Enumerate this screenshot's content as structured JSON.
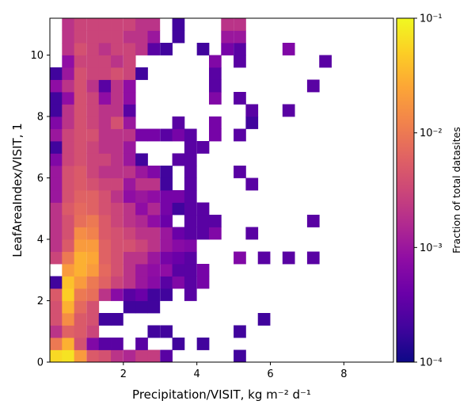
{
  "chart_data": {
    "type": "heatmap",
    "title": "",
    "xlabel": "Precipitation/VISIT,  kg m⁻² d⁻¹",
    "ylabel": "LeafAreaIndex/VISIT,  1",
    "xlim": [
      0.0,
      9.35
    ],
    "ylim": [
      0.0,
      11.2
    ],
    "x_ticks": [
      2,
      4,
      6,
      8
    ],
    "x_tick_labels": [
      "2",
      "4",
      "6",
      "8"
    ],
    "y_ticks": [
      0,
      2,
      4,
      6,
      8,
      10
    ],
    "y_tick_labels": [
      "0",
      "2",
      "4",
      "6",
      "8",
      "10"
    ],
    "bin_width_x": 0.33,
    "bin_height_y": 0.4,
    "colormap": "plasma",
    "color_scale": "log",
    "colorbar": {
      "label": "Fraction of total datasites",
      "range": [
        0.0001,
        0.1
      ],
      "ticks": [
        0.0001,
        0.001,
        0.01,
        0.1
      ],
      "tick_labels": [
        "10⁻⁴",
        "10⁻³",
        "10⁻²",
        "10⁻¹"
      ]
    },
    "cells": [
      [
        0.0,
        0.0,
        0.06
      ],
      [
        0.33,
        0.0,
        0.07
      ],
      [
        0.66,
        0.0,
        0.02
      ],
      [
        1.0,
        0.0,
        0.005
      ],
      [
        1.33,
        0.0,
        0.004
      ],
      [
        1.66,
        0.0,
        0.002
      ],
      [
        2.0,
        0.0,
        0.0015
      ],
      [
        2.33,
        0.0,
        0.0025
      ],
      [
        2.66,
        0.0,
        0.0025
      ],
      [
        3.0,
        0.0,
        0.0003
      ],
      [
        5.0,
        0.0,
        0.0002
      ],
      [
        0.0,
        0.4,
        0.01
      ],
      [
        0.33,
        0.4,
        0.03
      ],
      [
        0.66,
        0.4,
        0.004
      ],
      [
        1.0,
        0.4,
        0.0006
      ],
      [
        1.33,
        0.4,
        0.0003
      ],
      [
        1.66,
        0.4,
        0.0003
      ],
      [
        2.33,
        0.4,
        0.0003
      ],
      [
        3.33,
        0.4,
        0.0002
      ],
      [
        4.0,
        0.4,
        0.0002
      ],
      [
        0.0,
        0.8,
        0.002
      ],
      [
        0.33,
        0.8,
        0.006
      ],
      [
        0.66,
        0.8,
        0.005
      ],
      [
        1.0,
        0.8,
        0.003
      ],
      [
        2.66,
        0.8,
        0.0002
      ],
      [
        3.0,
        0.8,
        0.0002
      ],
      [
        5.0,
        0.8,
        0.0002
      ],
      [
        0.0,
        1.2,
        0.004
      ],
      [
        0.33,
        1.2,
        0.015
      ],
      [
        0.66,
        1.2,
        0.005
      ],
      [
        1.0,
        1.2,
        0.004
      ],
      [
        1.33,
        1.2,
        0.0002
      ],
      [
        1.66,
        1.2,
        0.0002
      ],
      [
        5.66,
        1.2,
        0.0002
      ],
      [
        0.0,
        1.6,
        0.004
      ],
      [
        0.33,
        1.6,
        0.03
      ],
      [
        0.66,
        1.6,
        0.007
      ],
      [
        1.0,
        1.6,
        0.004
      ],
      [
        2.0,
        1.6,
        0.0002
      ],
      [
        2.33,
        1.6,
        0.0002
      ],
      [
        2.66,
        1.6,
        0.0002
      ],
      [
        0.0,
        2.0,
        0.005
      ],
      [
        0.33,
        2.0,
        0.05
      ],
      [
        0.66,
        2.0,
        0.01
      ],
      [
        1.0,
        2.0,
        0.008
      ],
      [
        1.33,
        2.0,
        0.002
      ],
      [
        1.66,
        2.0,
        0.0007
      ],
      [
        2.0,
        2.0,
        0.0003
      ],
      [
        2.33,
        2.0,
        0.0004
      ],
      [
        2.66,
        2.0,
        0.0002
      ],
      [
        3.0,
        2.0,
        0.0002
      ],
      [
        3.66,
        2.0,
        0.0003
      ],
      [
        0.0,
        2.4,
        0.0002
      ],
      [
        0.33,
        2.4,
        0.04
      ],
      [
        0.66,
        2.4,
        0.02
      ],
      [
        1.0,
        2.4,
        0.01
      ],
      [
        1.33,
        2.4,
        0.006
      ],
      [
        1.66,
        2.4,
        0.003
      ],
      [
        2.0,
        2.4,
        0.002
      ],
      [
        2.33,
        2.4,
        0.001
      ],
      [
        2.66,
        2.4,
        0.0007
      ],
      [
        3.0,
        2.4,
        0.0003
      ],
      [
        3.33,
        2.4,
        0.0006
      ],
      [
        3.66,
        2.4,
        0.0003
      ],
      [
        4.0,
        2.4,
        0.0005
      ],
      [
        0.33,
        2.8,
        0.02
      ],
      [
        0.66,
        2.8,
        0.03
      ],
      [
        1.0,
        2.8,
        0.02
      ],
      [
        1.33,
        2.8,
        0.007
      ],
      [
        1.66,
        2.8,
        0.004
      ],
      [
        2.0,
        2.8,
        0.002
      ],
      [
        2.33,
        2.8,
        0.001
      ],
      [
        2.66,
        2.8,
        0.0008
      ],
      [
        3.0,
        2.8,
        0.0008
      ],
      [
        3.33,
        2.8,
        0.0003
      ],
      [
        3.66,
        2.8,
        0.0003
      ],
      [
        4.0,
        2.8,
        0.0005
      ],
      [
        0.0,
        3.2,
        0.003
      ],
      [
        0.33,
        3.2,
        0.01
      ],
      [
        0.66,
        3.2,
        0.03
      ],
      [
        1.0,
        3.2,
        0.025
      ],
      [
        1.33,
        3.2,
        0.006
      ],
      [
        1.66,
        3.2,
        0.004
      ],
      [
        2.0,
        3.2,
        0.002
      ],
      [
        2.33,
        3.2,
        0.002
      ],
      [
        2.66,
        3.2,
        0.001
      ],
      [
        3.0,
        3.2,
        0.0005
      ],
      [
        3.33,
        3.2,
        0.0004
      ],
      [
        3.66,
        3.2,
        0.0003
      ],
      [
        5.0,
        3.2,
        0.0006
      ],
      [
        5.66,
        3.2,
        0.0003
      ],
      [
        6.33,
        3.2,
        0.0003
      ],
      [
        7.0,
        3.2,
        0.0003
      ],
      [
        0.0,
        3.6,
        0.002
      ],
      [
        0.33,
        3.6,
        0.005
      ],
      [
        0.66,
        3.6,
        0.02
      ],
      [
        1.0,
        3.6,
        0.02
      ],
      [
        1.33,
        3.6,
        0.006
      ],
      [
        1.66,
        3.6,
        0.004
      ],
      [
        2.0,
        3.6,
        0.004
      ],
      [
        2.33,
        3.6,
        0.003
      ],
      [
        2.66,
        3.6,
        0.002
      ],
      [
        3.0,
        3.6,
        0.001
      ],
      [
        3.33,
        3.6,
        0.0007
      ],
      [
        3.66,
        3.6,
        0.0006
      ],
      [
        0.0,
        4.0,
        0.002
      ],
      [
        0.33,
        4.0,
        0.004
      ],
      [
        0.66,
        4.0,
        0.015
      ],
      [
        1.0,
        4.0,
        0.012
      ],
      [
        1.33,
        4.0,
        0.005
      ],
      [
        1.66,
        4.0,
        0.004
      ],
      [
        2.0,
        4.0,
        0.003
      ],
      [
        2.33,
        4.0,
        0.002
      ],
      [
        2.66,
        4.0,
        0.002
      ],
      [
        3.0,
        4.0,
        0.001
      ],
      [
        3.33,
        4.0,
        0.0004
      ],
      [
        3.66,
        4.0,
        0.0003
      ],
      [
        4.0,
        4.0,
        0.0003
      ],
      [
        4.33,
        4.0,
        0.0006
      ],
      [
        5.33,
        4.0,
        0.0003
      ],
      [
        0.0,
        4.4,
        0.002
      ],
      [
        0.33,
        4.4,
        0.004
      ],
      [
        0.66,
        4.4,
        0.008
      ],
      [
        1.0,
        4.4,
        0.01
      ],
      [
        1.33,
        4.4,
        0.005
      ],
      [
        1.66,
        4.4,
        0.003
      ],
      [
        2.0,
        4.4,
        0.002
      ],
      [
        2.33,
        4.4,
        0.0015
      ],
      [
        2.66,
        4.4,
        0.0008
      ],
      [
        3.0,
        4.4,
        0.0004
      ],
      [
        3.66,
        4.4,
        0.0003
      ],
      [
        4.0,
        4.4,
        0.0003
      ],
      [
        4.33,
        4.4,
        0.0003
      ],
      [
        7.0,
        4.4,
        0.0003
      ],
      [
        0.0,
        4.8,
        0.002
      ],
      [
        0.33,
        4.8,
        0.005
      ],
      [
        0.66,
        4.8,
        0.007
      ],
      [
        1.0,
        4.8,
        0.006
      ],
      [
        1.33,
        4.8,
        0.004
      ],
      [
        1.66,
        4.8,
        0.003
      ],
      [
        2.0,
        4.8,
        0.002
      ],
      [
        2.33,
        4.8,
        0.0008
      ],
      [
        2.66,
        4.8,
        0.0015
      ],
      [
        3.0,
        4.8,
        0.0005
      ],
      [
        3.33,
        4.8,
        0.0002
      ],
      [
        3.66,
        4.8,
        0.0003
      ],
      [
        4.0,
        4.8,
        0.0003
      ],
      [
        0.0,
        5.2,
        0.001
      ],
      [
        0.33,
        5.2,
        0.004
      ],
      [
        0.66,
        5.2,
        0.006
      ],
      [
        1.0,
        5.2,
        0.006
      ],
      [
        1.33,
        5.2,
        0.004
      ],
      [
        1.66,
        5.2,
        0.002
      ],
      [
        2.0,
        5.2,
        0.0008
      ],
      [
        2.33,
        5.2,
        0.001
      ],
      [
        2.66,
        5.2,
        0.0008
      ],
      [
        3.0,
        5.2,
        0.0005
      ],
      [
        3.33,
        5.2,
        0.0005
      ],
      [
        3.66,
        5.2,
        0.0003
      ],
      [
        0.0,
        5.6,
        0.001
      ],
      [
        0.33,
        5.6,
        0.004
      ],
      [
        0.66,
        5.6,
        0.005
      ],
      [
        1.0,
        5.6,
        0.004
      ],
      [
        1.33,
        5.6,
        0.003
      ],
      [
        1.66,
        5.6,
        0.003
      ],
      [
        2.0,
        5.6,
        0.001
      ],
      [
        2.33,
        5.6,
        0.002
      ],
      [
        2.66,
        5.6,
        0.002
      ],
      [
        3.0,
        5.6,
        0.0002
      ],
      [
        3.66,
        5.6,
        0.0003
      ],
      [
        5.33,
        5.6,
        0.0003
      ],
      [
        0.0,
        6.0,
        0.001
      ],
      [
        0.33,
        6.0,
        0.004
      ],
      [
        0.66,
        6.0,
        0.005
      ],
      [
        1.0,
        6.0,
        0.003
      ],
      [
        1.33,
        6.0,
        0.002
      ],
      [
        1.66,
        6.0,
        0.002
      ],
      [
        2.0,
        6.0,
        0.002
      ],
      [
        2.33,
        6.0,
        0.001
      ],
      [
        2.66,
        6.0,
        0.0006
      ],
      [
        3.0,
        6.0,
        0.0002
      ],
      [
        3.66,
        6.0,
        0.0003
      ],
      [
        5.0,
        6.0,
        0.0003
      ],
      [
        0.0,
        6.4,
        0.0006
      ],
      [
        0.33,
        6.4,
        0.003
      ],
      [
        0.66,
        6.4,
        0.004
      ],
      [
        1.0,
        6.4,
        0.003
      ],
      [
        1.33,
        6.4,
        0.003
      ],
      [
        1.66,
        6.4,
        0.002
      ],
      [
        2.0,
        6.4,
        0.001
      ],
      [
        2.33,
        6.4,
        0.0002
      ],
      [
        3.33,
        6.4,
        0.0003
      ],
      [
        3.66,
        6.4,
        0.0003
      ],
      [
        0.0,
        6.8,
        0.0002
      ],
      [
        0.33,
        6.8,
        0.003
      ],
      [
        0.66,
        6.8,
        0.004
      ],
      [
        1.0,
        6.8,
        0.003
      ],
      [
        1.33,
        6.8,
        0.002
      ],
      [
        1.66,
        6.8,
        0.002
      ],
      [
        2.0,
        6.8,
        0.001
      ],
      [
        3.66,
        6.8,
        0.0003
      ],
      [
        4.0,
        6.8,
        0.0003
      ],
      [
        0.0,
        7.2,
        0.001
      ],
      [
        0.33,
        7.2,
        0.003
      ],
      [
        0.66,
        7.2,
        0.004
      ],
      [
        1.0,
        7.2,
        0.004
      ],
      [
        1.33,
        7.2,
        0.002
      ],
      [
        1.66,
        7.2,
        0.002
      ],
      [
        2.0,
        7.2,
        0.002
      ],
      [
        2.33,
        7.2,
        0.0005
      ],
      [
        2.66,
        7.2,
        0.0005
      ],
      [
        3.0,
        7.2,
        0.0003
      ],
      [
        3.33,
        7.2,
        0.0005
      ],
      [
        3.66,
        7.2,
        0.0003
      ],
      [
        4.33,
        7.2,
        0.0005
      ],
      [
        5.0,
        7.2,
        0.0003
      ],
      [
        0.0,
        7.6,
        0.0006
      ],
      [
        0.33,
        7.6,
        0.002
      ],
      [
        0.66,
        7.6,
        0.004
      ],
      [
        1.0,
        7.6,
        0.003
      ],
      [
        1.33,
        7.6,
        0.002
      ],
      [
        1.66,
        7.6,
        0.004
      ],
      [
        2.0,
        7.6,
        0.001
      ],
      [
        3.33,
        7.6,
        0.0003
      ],
      [
        4.33,
        7.6,
        0.0005
      ],
      [
        5.33,
        7.6,
        0.0002
      ],
      [
        0.0,
        8.0,
        0.0002
      ],
      [
        0.33,
        8.0,
        0.002
      ],
      [
        0.66,
        8.0,
        0.004
      ],
      [
        1.0,
        8.0,
        0.003
      ],
      [
        1.33,
        8.0,
        0.002
      ],
      [
        1.66,
        8.0,
        0.002
      ],
      [
        2.0,
        8.0,
        0.0003
      ],
      [
        5.33,
        8.0,
        0.0003
      ],
      [
        6.33,
        8.0,
        0.0003
      ],
      [
        0.0,
        8.4,
        0.0002
      ],
      [
        0.33,
        8.4,
        0.0008
      ],
      [
        0.66,
        8.4,
        0.004
      ],
      [
        1.0,
        8.4,
        0.003
      ],
      [
        1.33,
        8.4,
        0.0008
      ],
      [
        1.66,
        8.4,
        0.002
      ],
      [
        2.0,
        8.4,
        0.0008
      ],
      [
        4.33,
        8.4,
        0.0006
      ],
      [
        5.0,
        8.4,
        0.0003
      ],
      [
        0.0,
        8.8,
        0.0008
      ],
      [
        0.33,
        8.8,
        0.002
      ],
      [
        0.66,
        8.8,
        0.004
      ],
      [
        1.0,
        8.8,
        0.002
      ],
      [
        1.33,
        8.8,
        0.0003
      ],
      [
        1.66,
        8.8,
        0.002
      ],
      [
        2.0,
        8.8,
        0.0008
      ],
      [
        4.33,
        8.8,
        0.0003
      ],
      [
        7.0,
        8.8,
        0.0003
      ],
      [
        0.0,
        9.2,
        0.0002
      ],
      [
        0.33,
        9.2,
        0.001
      ],
      [
        0.66,
        9.2,
        0.004
      ],
      [
        1.0,
        9.2,
        0.003
      ],
      [
        1.33,
        9.2,
        0.003
      ],
      [
        1.66,
        9.2,
        0.004
      ],
      [
        2.0,
        9.2,
        0.003
      ],
      [
        2.33,
        9.2,
        0.0002
      ],
      [
        4.33,
        9.2,
        0.0003
      ],
      [
        0.33,
        9.6,
        0.0008
      ],
      [
        0.66,
        9.6,
        0.003
      ],
      [
        1.0,
        9.6,
        0.003
      ],
      [
        1.33,
        9.6,
        0.003
      ],
      [
        1.66,
        9.6,
        0.002
      ],
      [
        2.0,
        9.6,
        0.003
      ],
      [
        4.33,
        9.6,
        0.0006
      ],
      [
        5.0,
        9.6,
        0.0003
      ],
      [
        7.33,
        9.6,
        0.0003
      ],
      [
        0.33,
        10.0,
        0.002
      ],
      [
        0.66,
        10.0,
        0.004
      ],
      [
        1.0,
        10.0,
        0.003
      ],
      [
        1.33,
        10.0,
        0.002
      ],
      [
        1.66,
        10.0,
        0.003
      ],
      [
        2.0,
        10.0,
        0.003
      ],
      [
        2.33,
        10.0,
        0.002
      ],
      [
        2.66,
        10.0,
        0.0003
      ],
      [
        3.0,
        10.0,
        0.0002
      ],
      [
        4.0,
        10.0,
        0.0002
      ],
      [
        4.66,
        10.0,
        0.0005
      ],
      [
        5.0,
        10.0,
        0.0003
      ],
      [
        6.33,
        10.0,
        0.0006
      ],
      [
        0.33,
        10.4,
        0.002
      ],
      [
        0.66,
        10.4,
        0.003
      ],
      [
        1.0,
        10.4,
        0.003
      ],
      [
        1.33,
        10.4,
        0.003
      ],
      [
        1.66,
        10.4,
        0.003
      ],
      [
        2.0,
        10.4,
        0.002
      ],
      [
        2.33,
        10.4,
        0.002
      ],
      [
        2.66,
        10.4,
        0.001
      ],
      [
        3.33,
        10.4,
        0.0002
      ],
      [
        4.66,
        10.4,
        0.001
      ],
      [
        5.0,
        10.4,
        0.001
      ],
      [
        0.33,
        10.8,
        0.002
      ],
      [
        0.66,
        10.8,
        0.003
      ],
      [
        1.0,
        10.8,
        0.003
      ],
      [
        1.33,
        10.8,
        0.003
      ],
      [
        1.66,
        10.8,
        0.003
      ],
      [
        2.0,
        10.8,
        0.003
      ],
      [
        2.33,
        10.8,
        0.002
      ],
      [
        2.66,
        10.8,
        0.002
      ],
      [
        3.33,
        10.8,
        0.0002
      ],
      [
        4.66,
        10.8,
        0.002
      ],
      [
        5.0,
        10.8,
        0.002
      ]
    ]
  }
}
